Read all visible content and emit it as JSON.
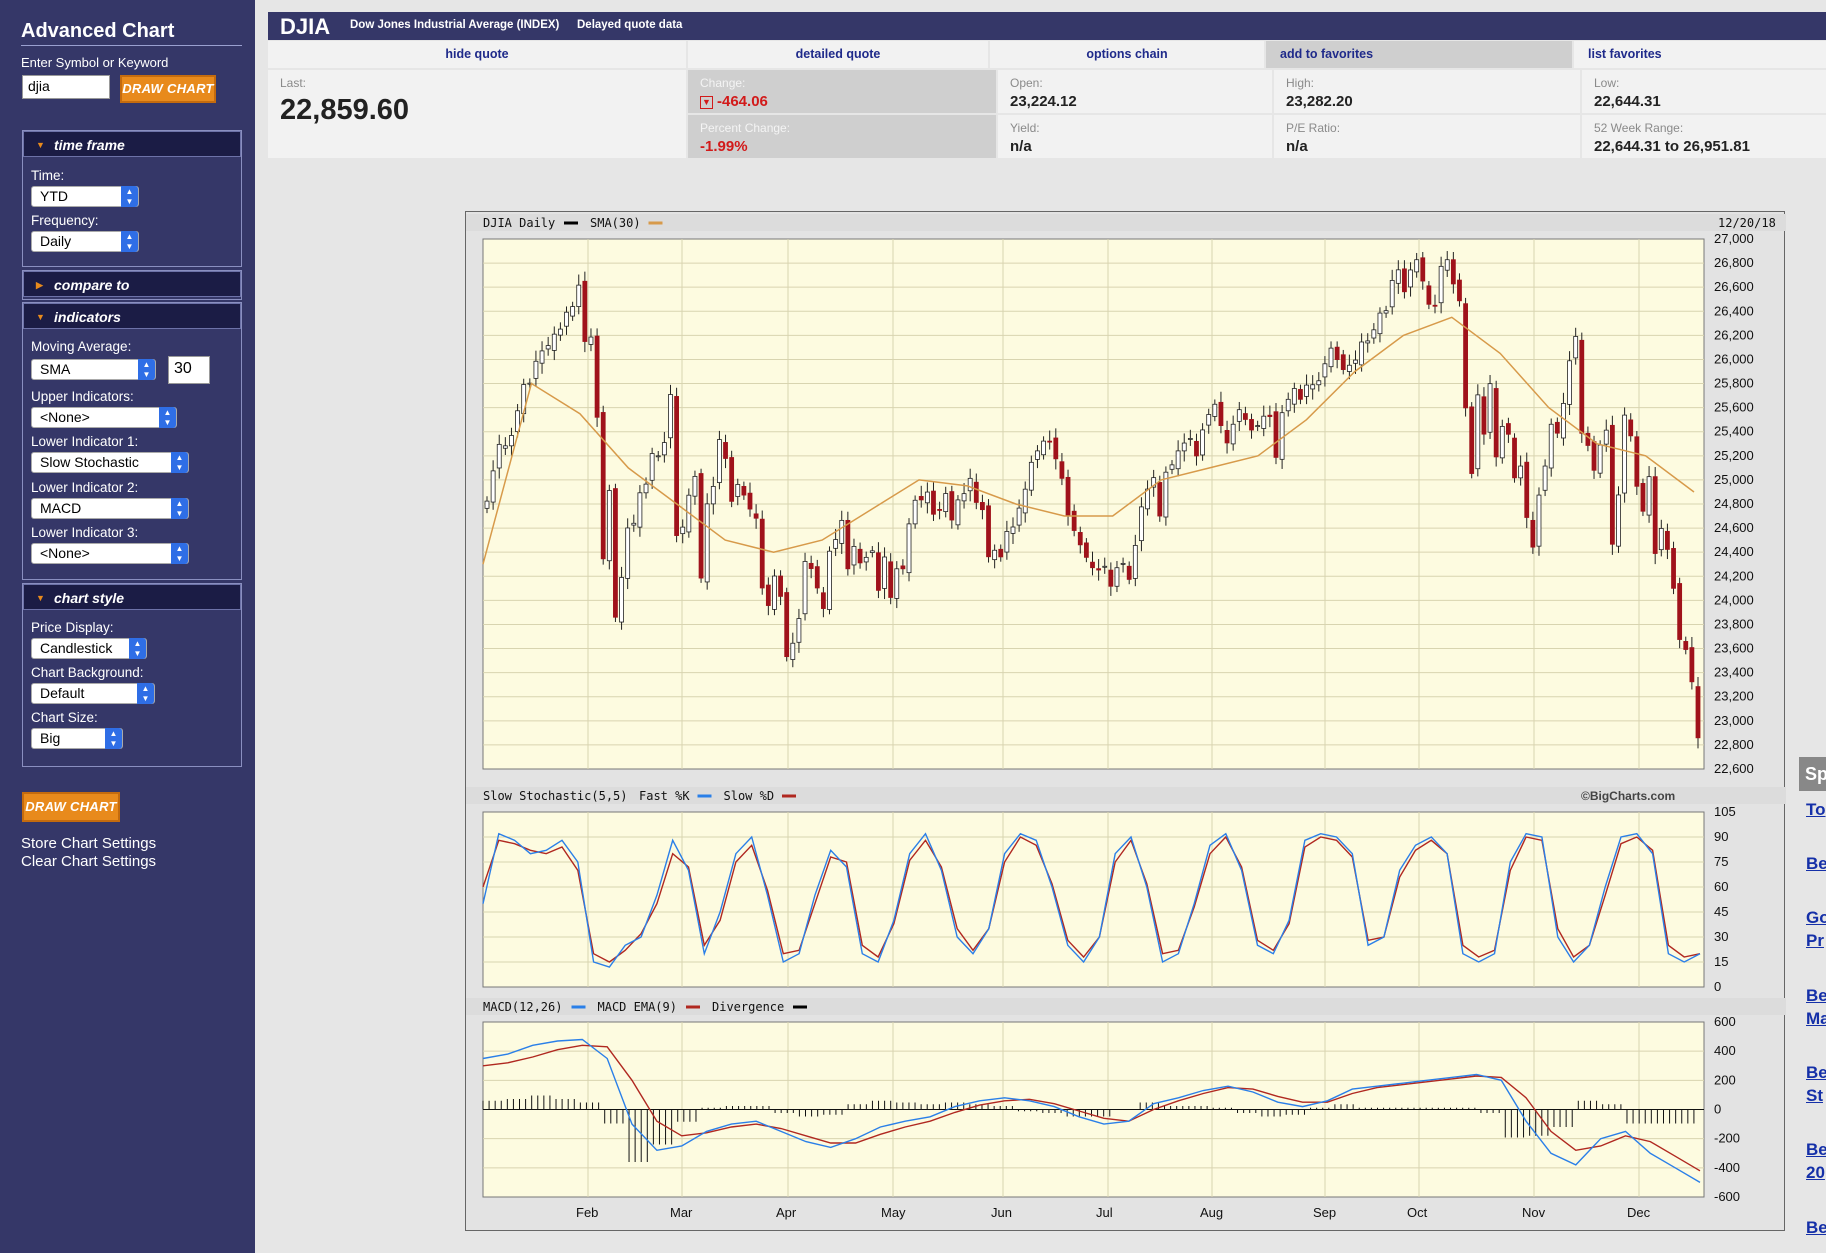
{
  "sidebar": {
    "title": "Advanced Chart",
    "symbol_label": "Enter Symbol or Keyword",
    "symbol_value": "djia",
    "draw_button": "DRAW CHART",
    "time_frame": {
      "title": "time frame",
      "time_label": "Time:",
      "time_value": "YTD",
      "freq_label": "Frequency:",
      "freq_value": "Daily"
    },
    "compare_to": {
      "title": "compare to"
    },
    "indicators": {
      "title": "indicators",
      "ma_label": "Moving Average:",
      "ma_type": "SMA",
      "ma_period": "30",
      "upper_label": "Upper Indicators:",
      "upper_value": "<None>",
      "lower1_label": "Lower Indicator 1:",
      "lower1_value": "Slow Stochastic",
      "lower2_label": "Lower Indicator 2:",
      "lower2_value": "MACD",
      "lower3_label": "Lower Indicator 3:",
      "lower3_value": "<None>"
    },
    "chart_style": {
      "title": "chart style",
      "price_label": "Price Display:",
      "price_value": "Candlestick",
      "bg_label": "Chart Background:",
      "bg_value": "Default",
      "size_label": "Chart Size:",
      "size_value": "Big"
    },
    "draw_button_2": "DRAW CHART",
    "store_link": "Store Chart Settings",
    "clear_link": "Clear Chart Settings"
  },
  "quote": {
    "symbol": "DJIA",
    "name": "Dow Jones Industrial Average (INDEX)",
    "delay": "Delayed quote data",
    "tabs": [
      "hide quote",
      "detailed quote",
      "options chain",
      "add to favorites",
      "list favorites"
    ],
    "last_label": "Last:",
    "last_value": "22,859.60",
    "change_label": "Change:",
    "change_value": "-464.06",
    "pct_label": "Percent Change:",
    "pct_value": "-1.99%",
    "open_label": "Open:",
    "open_value": "23,224.12",
    "high_label": "High:",
    "high_value": "23,282.20",
    "low_label": "Low:",
    "low_value": "22,644.31",
    "yield_label": "Yield:",
    "yield_value": "n/a",
    "pe_label": "P/E Ratio:",
    "pe_value": "n/a",
    "range_label": "52 Week Range:",
    "range_value": "22,644.31 to 26,951.81"
  },
  "right_links": {
    "sp": "Sp",
    "items": [
      "To",
      "Be",
      "Go",
      "Pr",
      "Be",
      "Ma",
      "Be",
      "St",
      "Be",
      "20",
      "Be"
    ]
  },
  "colors": {
    "sidebar_bg": "#353768",
    "chart_bg": "#fdfbe0",
    "down_candle": "#a0121b",
    "up_candle": "#ffffff",
    "sma_line": "#d79a4a",
    "fast_line": "#2a7fe8",
    "slow_line": "#b02820",
    "accent_button": "#e88a1c"
  },
  "chart_data": [
    {
      "type": "candlestick",
      "legend": [
        "DJIA Daily",
        "SMA(30)"
      ],
      "date_label": "12/20/18",
      "ylim": [
        22600,
        27000
      ],
      "yticks": [
        "27,000",
        "26,800",
        "26,600",
        "26,400",
        "26,200",
        "26,000",
        "25,800",
        "25,600",
        "25,400",
        "25,200",
        "25,000",
        "24,800",
        "24,600",
        "24,400",
        "24,200",
        "24,000",
        "23,800",
        "23,600",
        "23,400",
        "23,200",
        "23,000",
        "22,800",
        "22,600"
      ],
      "xticks": [
        "Feb",
        "Mar",
        "Apr",
        "May",
        "Jun",
        "Jul",
        "Aug",
        "Sep",
        "Oct",
        "Nov",
        "Dec"
      ],
      "close_series": [
        24824,
        25075,
        25295,
        25283,
        25369,
        25574,
        25792,
        25803,
        25985,
        26071,
        26115,
        26210,
        26252,
        26392,
        26439,
        26617,
        26149,
        26186,
        25520,
        24345,
        24912,
        23860,
        24190,
        24601,
        24640,
        24893,
        24965,
        25219,
        25200,
        25310,
        25709,
        24538,
        24608,
        24873,
        25029,
        24185,
        24801,
        24946,
        25335,
        25178,
        24822,
        24962,
        24874,
        24758,
        24682,
        24103,
        23957,
        24202,
        24033,
        23533,
        23644,
        23849,
        24323,
        24264,
        24103,
        23932,
        24408,
        24505,
        24664,
        24262,
        24448,
        24311,
        24357,
        24411,
        24083,
        24360,
        24024,
        24262,
        24262,
        24635,
        24831,
        24834,
        24899,
        24715,
        24753,
        24887,
        24667,
        24834,
        24886,
        25013,
        24813,
        24753,
        24362,
        24416,
        24361,
        24572,
        24609,
        24766,
        24923,
        25146,
        25241,
        25322,
        25316,
        25175,
        25013,
        24700,
        24580,
        24461,
        24357,
        24271,
        24252,
        24283,
        24117,
        24271,
        24307,
        24174,
        24456,
        24776,
        24924,
        25019,
        24700,
        25064,
        25125,
        25241,
        25306,
        25344,
        25199,
        25415,
        25543,
        25628,
        25451,
        25307,
        25462,
        25583,
        25502,
        25414,
        25451,
        25529,
        25526,
        25187,
        25558,
        25669,
        25759,
        25669,
        25787,
        25790,
        25823,
        25964,
        26094,
        25999,
        25916,
        25952,
        25995,
        26145,
        26154,
        26246,
        26385,
        26405,
        26656,
        26744,
        26562,
        26743,
        26828,
        26651,
        26458,
        26447,
        26773,
        26828,
        26627,
        26487,
        25598,
        25053,
        25706,
        25380,
        25799,
        25191,
        25444,
        25379,
        25017,
        25115,
        24688,
        24442,
        24874,
        25115,
        25462,
        25388,
        25635,
        25989,
        26191,
        25387,
        25286,
        25080,
        25289,
        25413,
        24466,
        24875,
        25538,
        25366,
        24947,
        24740,
        25027,
        24389,
        24597,
        24423,
        24100,
        23675,
        23592,
        23324,
        22859
      ],
      "sma30_approx": [
        24300,
        25800,
        25550,
        25100,
        24800,
        24500,
        24400,
        24500,
        24750,
        25000,
        24950,
        24800,
        24700,
        24700,
        25000,
        25100,
        25200,
        25500,
        25900,
        26200,
        26350,
        26050,
        25600,
        25300,
        25200,
        24900
      ]
    },
    {
      "type": "line",
      "legend": [
        "Slow Stochastic(5,5)",
        "Fast %K",
        "Slow %D"
      ],
      "credit": "©BigCharts.com",
      "ylim": [
        0,
        105
      ],
      "yticks": [
        "105",
        "90",
        "75",
        "60",
        "45",
        "30",
        "15",
        "0"
      ],
      "fast_k": [
        50,
        92,
        88,
        80,
        82,
        88,
        75,
        15,
        12,
        25,
        30,
        55,
        88,
        70,
        20,
        45,
        80,
        90,
        55,
        15,
        20,
        55,
        82,
        72,
        20,
        15,
        40,
        80,
        92,
        70,
        30,
        20,
        35,
        80,
        92,
        88,
        60,
        25,
        15,
        30,
        80,
        90,
        60,
        15,
        20,
        50,
        85,
        92,
        70,
        25,
        20,
        40,
        88,
        92,
        90,
        80,
        25,
        30,
        70,
        85,
        90,
        80,
        20,
        15,
        20,
        75,
        92,
        90,
        30,
        15,
        25,
        60,
        90,
        92,
        80,
        20,
        15,
        20
      ],
      "slow_d": [
        60,
        88,
        86,
        82,
        80,
        84,
        70,
        20,
        15,
        22,
        32,
        50,
        80,
        72,
        25,
        40,
        75,
        85,
        58,
        20,
        22,
        50,
        78,
        75,
        25,
        18,
        38,
        76,
        88,
        72,
        35,
        22,
        35,
        75,
        90,
        85,
        62,
        28,
        18,
        30,
        75,
        88,
        62,
        20,
        22,
        48,
        80,
        90,
        72,
        28,
        22,
        38,
        84,
        90,
        88,
        78,
        28,
        30,
        66,
        82,
        88,
        80,
        25,
        18,
        22,
        70,
        90,
        88,
        35,
        18,
        25,
        55,
        86,
        90,
        82,
        25,
        18,
        20
      ]
    },
    {
      "type": "line",
      "legend": [
        "MACD(12,26)",
        "MACD EMA(9)",
        "Divergence"
      ],
      "ylim": [
        -600,
        600
      ],
      "yticks": [
        "600",
        "400",
        "200",
        "0",
        "-200",
        "-400",
        "-600"
      ],
      "macd": [
        350,
        380,
        440,
        470,
        480,
        350,
        -100,
        -280,
        -250,
        -150,
        -100,
        -80,
        -150,
        -220,
        -260,
        -200,
        -120,
        -80,
        -50,
        20,
        60,
        80,
        60,
        20,
        -50,
        -100,
        -80,
        40,
        80,
        130,
        160,
        120,
        50,
        20,
        60,
        140,
        160,
        180,
        200,
        220,
        240,
        200,
        -80,
        -300,
        -380,
        -200,
        -150,
        -300,
        -400,
        -500
      ],
      "signal": [
        300,
        320,
        360,
        410,
        440,
        430,
        200,
        -80,
        -180,
        -160,
        -120,
        -100,
        -130,
        -180,
        -230,
        -230,
        -170,
        -120,
        -80,
        -20,
        30,
        60,
        70,
        40,
        -10,
        -60,
        -80,
        0,
        60,
        110,
        150,
        140,
        90,
        50,
        50,
        110,
        150,
        170,
        190,
        210,
        230,
        220,
        80,
        -150,
        -280,
        -250,
        -180,
        -220,
        -320,
        -420
      ]
    }
  ]
}
